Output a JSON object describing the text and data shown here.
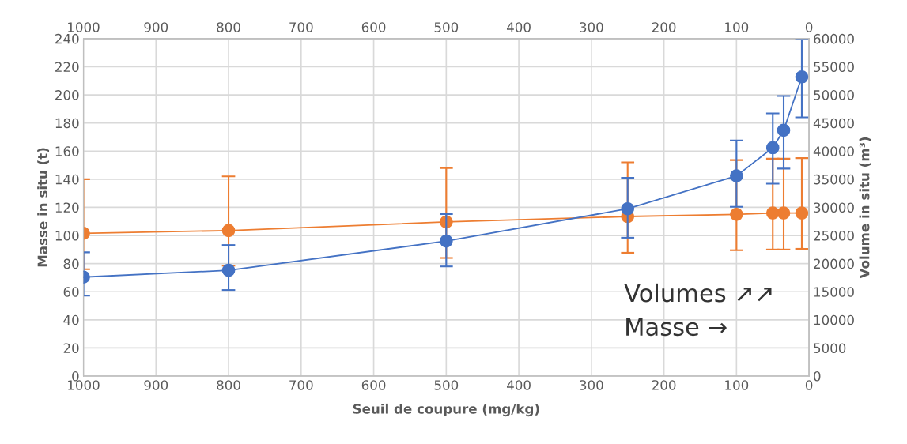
{
  "chart_data": {
    "type": "line",
    "xlabel": "Seuil de coupure (mg/kg)",
    "ylabel": "Masse in situ (t)",
    "y2label": "Volume in situ (m³)",
    "annotations": [
      "Volumes ↗↗",
      "Masse →"
    ],
    "x": [
      1000,
      800,
      500,
      250,
      100,
      50,
      35,
      10
    ],
    "series": [
      {
        "color": "#4472c4",
        "axis": "y2",
        "values": [
          17600,
          18800,
          24000,
          29750,
          35600,
          40600,
          43700,
          53200
        ],
        "errors": [
          [
            14300,
            22000
          ],
          [
            15300,
            23300
          ],
          [
            19500,
            28800
          ],
          [
            24600,
            35250
          ],
          [
            30100,
            41900
          ],
          [
            34200,
            46700
          ],
          [
            36900,
            49800
          ],
          [
            46000,
            59900
          ]
        ]
      },
      {
        "color": "#ed7d31",
        "values": [
          101.5,
          103.5,
          109.6,
          113.5,
          115,
          116,
          116,
          116
        ],
        "errors": [
          [
            76,
            140
          ],
          [
            78.5,
            142
          ],
          [
            84,
            148
          ],
          [
            87.7,
            152
          ],
          [
            89.5,
            153.6
          ],
          [
            90,
            154.6
          ],
          [
            90,
            154.6
          ],
          [
            90.5,
            155
          ]
        ]
      }
    ],
    "xlim": [
      1000,
      0
    ],
    "xticks": [
      1000,
      900,
      800,
      700,
      600,
      500,
      400,
      300,
      200,
      100,
      0
    ],
    "x2lim": [
      1000,
      0
    ],
    "x2ticks": [
      1000,
      900,
      800,
      700,
      600,
      500,
      400,
      300,
      200,
      100,
      0
    ],
    "ylim": [
      0,
      240
    ],
    "yticks": [
      0,
      20,
      40,
      60,
      80,
      100,
      120,
      140,
      160,
      180,
      200,
      220,
      240
    ],
    "y2lim": [
      0,
      60000
    ],
    "y2ticks": [
      0,
      5000,
      10000,
      15000,
      20000,
      25000,
      30000,
      35000,
      40000,
      45000,
      50000,
      55000,
      60000
    ],
    "grid": true,
    "marker": "circle",
    "line_style": "solid",
    "legend": false
  }
}
